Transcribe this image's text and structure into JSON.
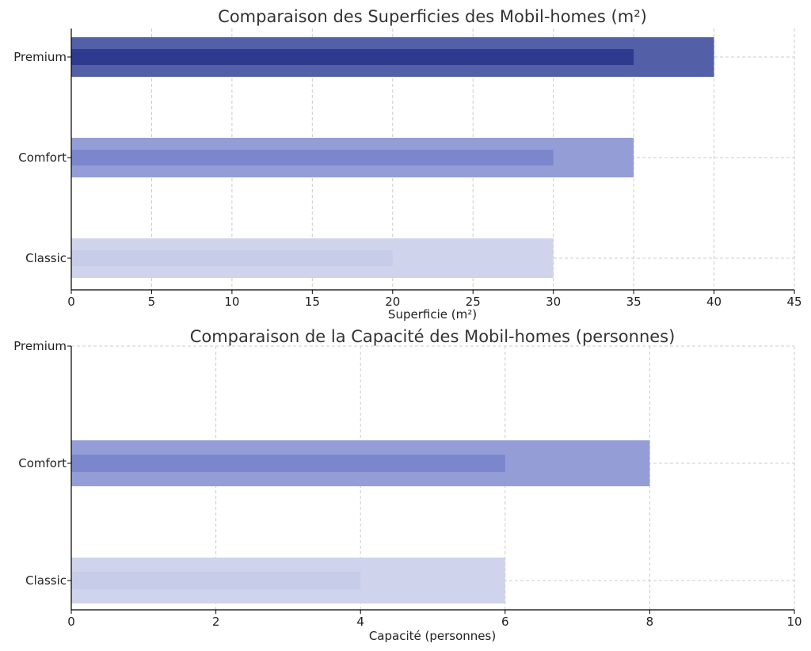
{
  "chart_data": [
    {
      "type": "bar",
      "orientation": "horizontal",
      "title": "Comparaison des Superficies des Mobil-homes (m²)",
      "xlabel": "Superficie (m²)",
      "ylabel": "",
      "categories": [
        "Classic",
        "Comfort",
        "Premium"
      ],
      "series": [
        {
          "values": [
            30,
            35,
            40
          ]
        },
        {
          "values": [
            20,
            30,
            35
          ]
        }
      ],
      "xlim": [
        0,
        45
      ],
      "xticks": [
        0,
        5,
        10,
        15,
        20,
        25,
        30,
        35,
        40,
        45
      ],
      "grid": true,
      "colors": {
        "Classic": "#cfd4ec",
        "Comfort": "#949dd6",
        "Premium": "#5360a8",
        "inner_Classic": "#c7cce8",
        "inner_Comfort": "#7b86cc",
        "inner_Premium": "#2e3a8e"
      }
    },
    {
      "type": "bar",
      "orientation": "horizontal",
      "title": "Comparaison de la Capacité des Mobil-homes (personnes)",
      "xlabel": "Capacité (personnes)",
      "ylabel": "",
      "categories": [
        "Classic",
        "Comfort",
        "Premium"
      ],
      "series": [
        {
          "values": [
            6,
            8,
            0
          ]
        },
        {
          "values": [
            4,
            6,
            0
          ]
        }
      ],
      "xlim": [
        0,
        10
      ],
      "xticks": [
        0,
        2,
        4,
        6,
        8,
        10
      ],
      "grid": true,
      "colors": {
        "Classic": "#cfd4ec",
        "Comfort": "#949dd6",
        "Premium": "#5360a8",
        "inner_Classic": "#c7cce8",
        "inner_Comfort": "#7b86cc",
        "inner_Premium": "#2e3a8e"
      }
    }
  ]
}
